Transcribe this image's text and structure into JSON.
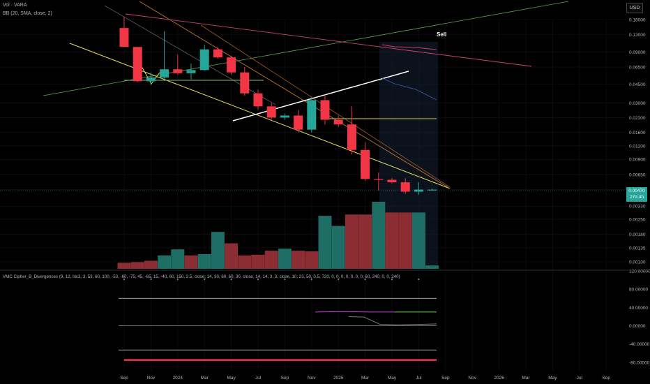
{
  "legend": {
    "vol": "Vol · VARA",
    "bb": "BB (20, SMA, close, 2)",
    "vmc": "VMC Cipher_B_Divergences (9, 12, hlc3, 3, 53, 60, 100, -53, -60, -75, 45, -65, 15, -40, 60, 150, 2.5, close, 14, 30, 60, 60, 30, close, 14, 14, 3, 3, close, 10, 23, 50, 0.5, 720, 0, 0, 0, 0, 0, 0, 0, 60, 240, 0, 0, 240)"
  },
  "currency_button": "USD",
  "current_price": {
    "value": "0.00470",
    "countdown": "27d 4h"
  },
  "annotation_sell": "Sell",
  "colors": {
    "up": "#26a69a",
    "down": "#f23645",
    "vol_up": "#1f6e65",
    "vol_down": "#8b2d33",
    "background": "#000000"
  },
  "chart_data": [
    {
      "type": "candlestick",
      "y_scale": "log",
      "y_ticks": [
        "0.18000",
        "0.13000",
        "0.09000",
        "0.06500",
        "0.04500",
        "0.03000",
        "0.02200",
        "0.01600",
        "0.01200",
        "0.00900",
        "0.00650",
        "0.00470",
        "0.00330",
        "0.00250",
        "0.00180",
        "0.00135",
        "0.00100"
      ],
      "x_ticks": [
        "Sep",
        "Nov",
        "2024",
        "Mar",
        "May",
        "Jul",
        "Sep",
        "Nov",
        "2025",
        "Mar",
        "May",
        "Jul",
        "Sep",
        "Nov",
        "2026",
        "Mar",
        "May",
        "Jul",
        "Sep"
      ],
      "candles": [
        {
          "o": 0.15,
          "h": 0.19,
          "l": 0.1,
          "c": 0.1
        },
        {
          "o": 0.1,
          "h": 0.1,
          "l": 0.047,
          "c": 0.048
        },
        {
          "o": 0.048,
          "h": 0.058,
          "l": 0.044,
          "c": 0.052
        },
        {
          "o": 0.052,
          "h": 0.14,
          "l": 0.05,
          "c": 0.062
        },
        {
          "o": 0.062,
          "h": 0.085,
          "l": 0.055,
          "c": 0.057
        },
        {
          "o": 0.057,
          "h": 0.07,
          "l": 0.05,
          "c": 0.061
        },
        {
          "o": 0.061,
          "h": 0.105,
          "l": 0.06,
          "c": 0.095
        },
        {
          "o": 0.095,
          "h": 0.1,
          "l": 0.078,
          "c": 0.08
        },
        {
          "o": 0.08,
          "h": 0.083,
          "l": 0.055,
          "c": 0.058
        },
        {
          "o": 0.058,
          "h": 0.065,
          "l": 0.035,
          "c": 0.037
        },
        {
          "o": 0.037,
          "h": 0.04,
          "l": 0.026,
          "c": 0.028
        },
        {
          "o": 0.028,
          "h": 0.03,
          "l": 0.021,
          "c": 0.022
        },
        {
          "o": 0.022,
          "h": 0.024,
          "l": 0.021,
          "c": 0.023
        },
        {
          "o": 0.023,
          "h": 0.026,
          "l": 0.016,
          "c": 0.017
        },
        {
          "o": 0.017,
          "h": 0.034,
          "l": 0.016,
          "c": 0.032
        },
        {
          "o": 0.032,
          "h": 0.036,
          "l": 0.019,
          "c": 0.021
        },
        {
          "o": 0.021,
          "h": 0.023,
          "l": 0.018,
          "c": 0.019
        },
        {
          "o": 0.019,
          "h": 0.028,
          "l": 0.01,
          "c": 0.011
        },
        {
          "o": 0.011,
          "h": 0.013,
          "l": 0.0057,
          "c": 0.0059
        },
        {
          "o": 0.0059,
          "h": 0.0068,
          "l": 0.0046,
          "c": 0.0058
        },
        {
          "o": 0.0058,
          "h": 0.006,
          "l": 0.0054,
          "c": 0.0055
        },
        {
          "o": 0.0055,
          "h": 0.006,
          "l": 0.0043,
          "c": 0.0045
        },
        {
          "o": 0.0045,
          "h": 0.0055,
          "l": 0.0042,
          "c": 0.0047
        },
        {
          "o": 0.0047,
          "h": 0.0048,
          "l": 0.0046,
          "c": 0.0047
        }
      ],
      "volume": {
        "values": [
          0.09,
          0.1,
          0.12,
          0.2,
          0.29,
          0.2,
          0.22,
          0.55,
          0.38,
          0.2,
          0.21,
          0.27,
          0.3,
          0.27,
          0.26,
          0.79,
          0.64,
          0.81,
          0.81,
          1.0,
          0.84,
          0.84,
          0.84,
          0.05
        ],
        "up": [
          false,
          false,
          false,
          true,
          true,
          false,
          true,
          true,
          false,
          false,
          false,
          false,
          true,
          false,
          false,
          true,
          true,
          false,
          false,
          true,
          false,
          false,
          true,
          true
        ]
      }
    },
    {
      "type": "line",
      "y_ticks": [
        "120.00000",
        "80.00000",
        "40.00000",
        "0.00000",
        "-40.00000",
        "-80.00000"
      ],
      "ylim": [
        -100,
        120
      ],
      "levels": [
        60,
        0,
        -53
      ],
      "series": [
        {
          "color": "#c43ad8",
          "values": [
            30,
            31,
            30,
            30
          ]
        },
        {
          "color": "#66cc44",
          "values": [
            30,
            30
          ]
        },
        {
          "color": "#6b7a86",
          "values": [
            20,
            19,
            3,
            2,
            3,
            4
          ]
        }
      ],
      "bottom_level": -75
    }
  ]
}
